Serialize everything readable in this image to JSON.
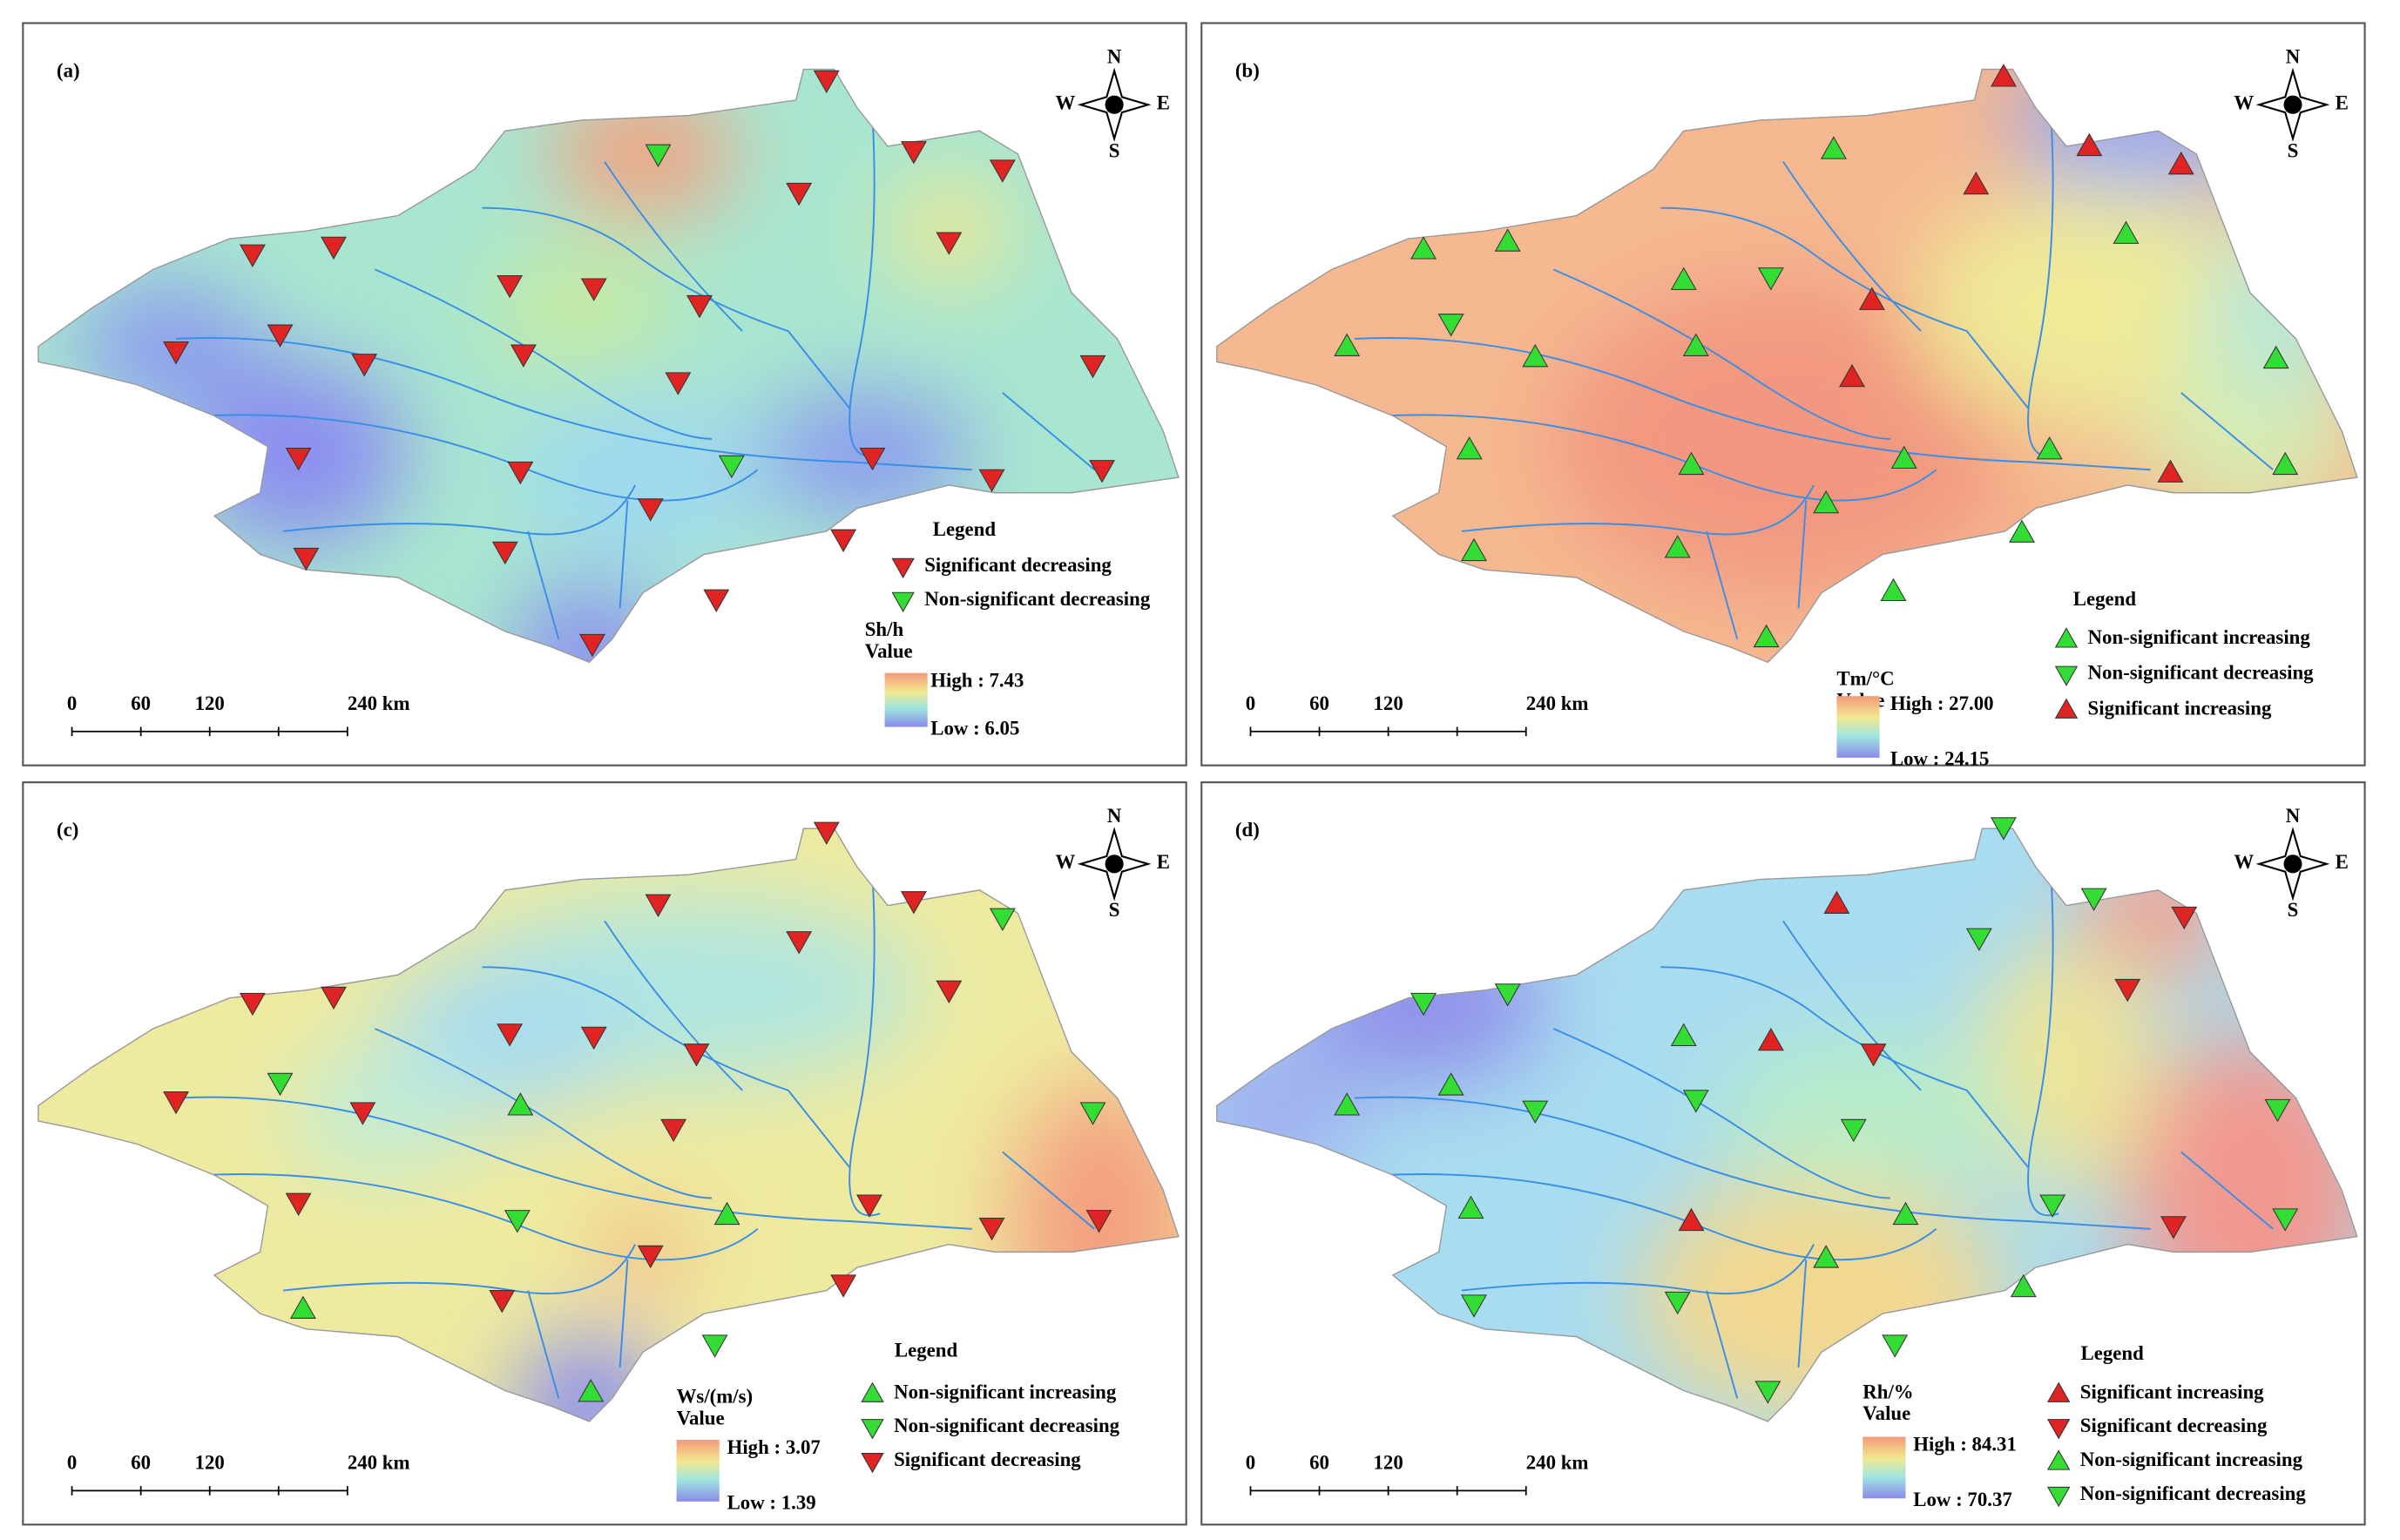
{
  "compass": {
    "n": "N",
    "e": "E",
    "s": "S",
    "w": "W"
  },
  "scale_bar": [
    "0",
    "60",
    "120",
    "240 km"
  ],
  "panels": [
    {
      "label": "(a)",
      "legend_title": "Legend",
      "variable": "Sh/h",
      "value_label": "Value",
      "high": "High : 7.43",
      "low": "Low : 6.05",
      "legend": [
        {
          "label": "Significant decreasing",
          "symbol": "down",
          "color": "#e02424"
        },
        {
          "label": "Non-significant decreasing",
          "symbol": "down",
          "color": "#33dd33"
        }
      ]
    },
    {
      "label": "(b)",
      "legend_title": "Legend",
      "variable": "Tm/°C",
      "value_label": "Value",
      "high": "High : 27.00",
      "low": "Low : 24.15",
      "legend": [
        {
          "label": "Non-significant increasing",
          "symbol": "up",
          "color": "#33dd33"
        },
        {
          "label": "Non-significant decreasing",
          "symbol": "down",
          "color": "#33dd33"
        },
        {
          "label": "Significant increasing",
          "symbol": "up",
          "color": "#e02424"
        }
      ]
    },
    {
      "label": "(c)",
      "legend_title": "Legend",
      "variable": "Ws/(m/s)",
      "value_label": "Value",
      "high": "High : 3.07",
      "low": "Low : 1.39",
      "legend": [
        {
          "label": "Non-significant increasing",
          "symbol": "up",
          "color": "#33dd33"
        },
        {
          "label": "Non-significant decreasing",
          "symbol": "down",
          "color": "#33dd33"
        },
        {
          "label": "Significant decreasing",
          "symbol": "down",
          "color": "#e02424"
        }
      ]
    },
    {
      "label": "(d)",
      "legend_title": "Legend",
      "variable": "Rh/%",
      "value_label": "Value",
      "high": "High : 84.31",
      "low": "Low : 70.37",
      "legend": [
        {
          "label": "Significant increasing",
          "symbol": "up",
          "color": "#e02424"
        },
        {
          "label": "Significant decreasing",
          "symbol": "down",
          "color": "#e02424"
        },
        {
          "label": "Non-significant increasing",
          "symbol": "up",
          "color": "#33dd33"
        },
        {
          "label": "Non-significant decreasing",
          "symbol": "down",
          "color": "#33dd33"
        }
      ]
    }
  ]
}
